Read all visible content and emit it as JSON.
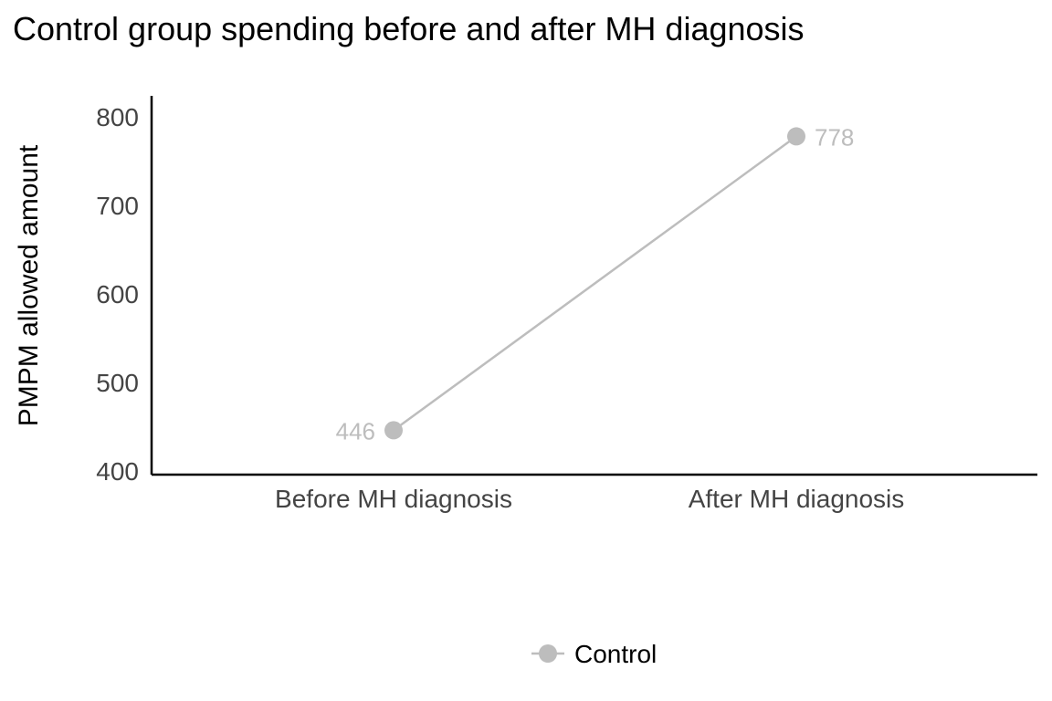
{
  "chart_data": {
    "type": "line",
    "title": "Control group spending before and after MH diagnosis",
    "xlabel": "",
    "ylabel": "PMPM allowed amount",
    "categories": [
      "Before MH diagnosis",
      "After MH diagnosis"
    ],
    "series": [
      {
        "name": "Control",
        "values": [
          446,
          778
        ],
        "data_labels": [
          "446",
          "778"
        ],
        "color": "#bdbdbd"
      }
    ],
    "ylim": [
      400,
      830
    ],
    "yticks": [
      {
        "value": 400,
        "label": "400"
      },
      {
        "value": 500,
        "label": "500"
      },
      {
        "value": 600,
        "label": "600"
      },
      {
        "value": 700,
        "label": "700"
      },
      {
        "value": 800,
        "label": "800"
      }
    ],
    "grid": false,
    "legend_position": "bottom"
  }
}
